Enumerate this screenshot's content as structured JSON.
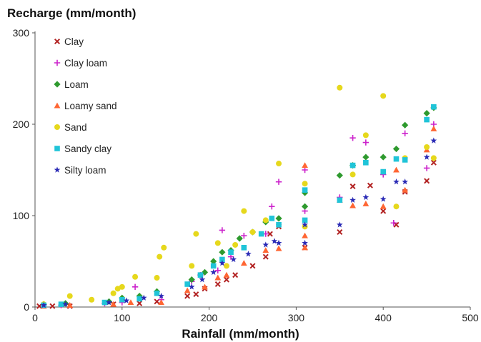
{
  "chart_data": {
    "type": "scatter",
    "title": "",
    "xlabel": "Rainfall (mm/month)",
    "ylabel": "Recharge (mm/month)",
    "xlim": [
      0,
      500
    ],
    "ylim": [
      0,
      300
    ],
    "x_ticks": [
      "0",
      "100",
      "200",
      "300",
      "400",
      "500"
    ],
    "y_ticks": [
      "0",
      "100",
      "200",
      "300"
    ],
    "grid": false,
    "legend_position": "top-left",
    "series": [
      {
        "name": "Clay",
        "marker": "x",
        "color": "#b22222",
        "points": [
          [
            5,
            1
          ],
          [
            20,
            1
          ],
          [
            40,
            1
          ],
          [
            90,
            3
          ],
          [
            120,
            4
          ],
          [
            140,
            6
          ],
          [
            175,
            12
          ],
          [
            185,
            14
          ],
          [
            195,
            20
          ],
          [
            210,
            25
          ],
          [
            220,
            30
          ],
          [
            230,
            35
          ],
          [
            250,
            45
          ],
          [
            265,
            55
          ],
          [
            270,
            80
          ],
          [
            280,
            88
          ],
          [
            310,
            65
          ],
          [
            350,
            82
          ],
          [
            365,
            132
          ],
          [
            385,
            133
          ],
          [
            400,
            105
          ],
          [
            415,
            90
          ],
          [
            425,
            126
          ],
          [
            450,
            138
          ],
          [
            458,
            158
          ]
        ]
      },
      {
        "name": "Clay loam",
        "marker": "+",
        "color": "#cc22cc",
        "points": [
          [
            10,
            2
          ],
          [
            30,
            2
          ],
          [
            80,
            4
          ],
          [
            100,
            5
          ],
          [
            115,
            22
          ],
          [
            145,
            8
          ],
          [
            180,
            28
          ],
          [
            190,
            35
          ],
          [
            210,
            40
          ],
          [
            215,
            84
          ],
          [
            225,
            55
          ],
          [
            240,
            78
          ],
          [
            265,
            80
          ],
          [
            272,
            110
          ],
          [
            280,
            137
          ],
          [
            310,
            150
          ],
          [
            310,
            105
          ],
          [
            350,
            120
          ],
          [
            365,
            185
          ],
          [
            380,
            180
          ],
          [
            400,
            145
          ],
          [
            412,
            92
          ],
          [
            425,
            190
          ],
          [
            450,
            152
          ],
          [
            458,
            200
          ]
        ]
      },
      {
        "name": "Loam",
        "marker": "diamond",
        "color": "#2e9a2e",
        "points": [
          [
            10,
            3
          ],
          [
            35,
            4
          ],
          [
            85,
            6
          ],
          [
            100,
            10
          ],
          [
            120,
            12
          ],
          [
            140,
            17
          ],
          [
            180,
            30
          ],
          [
            195,
            38
          ],
          [
            205,
            50
          ],
          [
            215,
            60
          ],
          [
            225,
            62
          ],
          [
            235,
            75
          ],
          [
            250,
            82
          ],
          [
            265,
            93
          ],
          [
            280,
            97
          ],
          [
            310,
            110
          ],
          [
            310,
            125
          ],
          [
            350,
            144
          ],
          [
            365,
            155
          ],
          [
            380,
            164
          ],
          [
            400,
            164
          ],
          [
            415,
            173
          ],
          [
            425,
            199
          ],
          [
            450,
            212
          ],
          [
            458,
            218
          ]
        ]
      },
      {
        "name": "Loamy sand",
        "marker": "triangle",
        "color": "#ff6633",
        "points": [
          [
            10,
            1
          ],
          [
            40,
            2
          ],
          [
            90,
            3
          ],
          [
            110,
            5
          ],
          [
            145,
            5
          ],
          [
            175,
            18
          ],
          [
            195,
            22
          ],
          [
            210,
            32
          ],
          [
            220,
            35
          ],
          [
            240,
            48
          ],
          [
            265,
            62
          ],
          [
            280,
            64
          ],
          [
            310,
            65
          ],
          [
            310,
            78
          ],
          [
            310,
            155
          ],
          [
            350,
            117
          ],
          [
            365,
            111
          ],
          [
            380,
            113
          ],
          [
            400,
            110
          ],
          [
            415,
            150
          ],
          [
            425,
            128
          ],
          [
            450,
            172
          ],
          [
            458,
            195
          ]
        ]
      },
      {
        "name": "Sand",
        "marker": "circle",
        "color": "#e6d81c",
        "points": [
          [
            10,
            3
          ],
          [
            40,
            12
          ],
          [
            65,
            8
          ],
          [
            90,
            15
          ],
          [
            95,
            20
          ],
          [
            100,
            22
          ],
          [
            115,
            33
          ],
          [
            140,
            32
          ],
          [
            143,
            55
          ],
          [
            148,
            65
          ],
          [
            180,
            45
          ],
          [
            185,
            80
          ],
          [
            210,
            70
          ],
          [
            220,
            45
          ],
          [
            230,
            68
          ],
          [
            240,
            105
          ],
          [
            250,
            82
          ],
          [
            265,
            95
          ],
          [
            280,
            157
          ],
          [
            310,
            135
          ],
          [
            310,
            88
          ],
          [
            350,
            240
          ],
          [
            365,
            145
          ],
          [
            380,
            188
          ],
          [
            400,
            231
          ],
          [
            415,
            110
          ],
          [
            425,
            163
          ],
          [
            450,
            175
          ],
          [
            458,
            163
          ]
        ]
      },
      {
        "name": "Sandy clay",
        "marker": "square",
        "color": "#20c4d8",
        "points": [
          [
            10,
            2
          ],
          [
            30,
            3
          ],
          [
            80,
            5
          ],
          [
            100,
            8
          ],
          [
            120,
            9
          ],
          [
            140,
            15
          ],
          [
            175,
            25
          ],
          [
            190,
            35
          ],
          [
            205,
            45
          ],
          [
            215,
            52
          ],
          [
            225,
            60
          ],
          [
            240,
            65
          ],
          [
            260,
            80
          ],
          [
            272,
            97
          ],
          [
            280,
            90
          ],
          [
            310,
            128
          ],
          [
            310,
            95
          ],
          [
            350,
            117
          ],
          [
            365,
            155
          ],
          [
            380,
            158
          ],
          [
            400,
            148
          ],
          [
            415,
            162
          ],
          [
            425,
            161
          ],
          [
            450,
            205
          ],
          [
            458,
            219
          ]
        ]
      },
      {
        "name": "Silty loam",
        "marker": "star",
        "color": "#2a2ab5",
        "points": [
          [
            10,
            2
          ],
          [
            35,
            3
          ],
          [
            85,
            5
          ],
          [
            105,
            7
          ],
          [
            125,
            10
          ],
          [
            145,
            12
          ],
          [
            180,
            22
          ],
          [
            192,
            30
          ],
          [
            205,
            38
          ],
          [
            215,
            48
          ],
          [
            228,
            52
          ],
          [
            245,
            58
          ],
          [
            265,
            68
          ],
          [
            275,
            72
          ],
          [
            280,
            70
          ],
          [
            310,
            90
          ],
          [
            310,
            70
          ],
          [
            350,
            90
          ],
          [
            365,
            117
          ],
          [
            380,
            120
          ],
          [
            400,
            118
          ],
          [
            415,
            137
          ],
          [
            425,
            137
          ],
          [
            450,
            164
          ],
          [
            458,
            182
          ]
        ]
      }
    ]
  }
}
